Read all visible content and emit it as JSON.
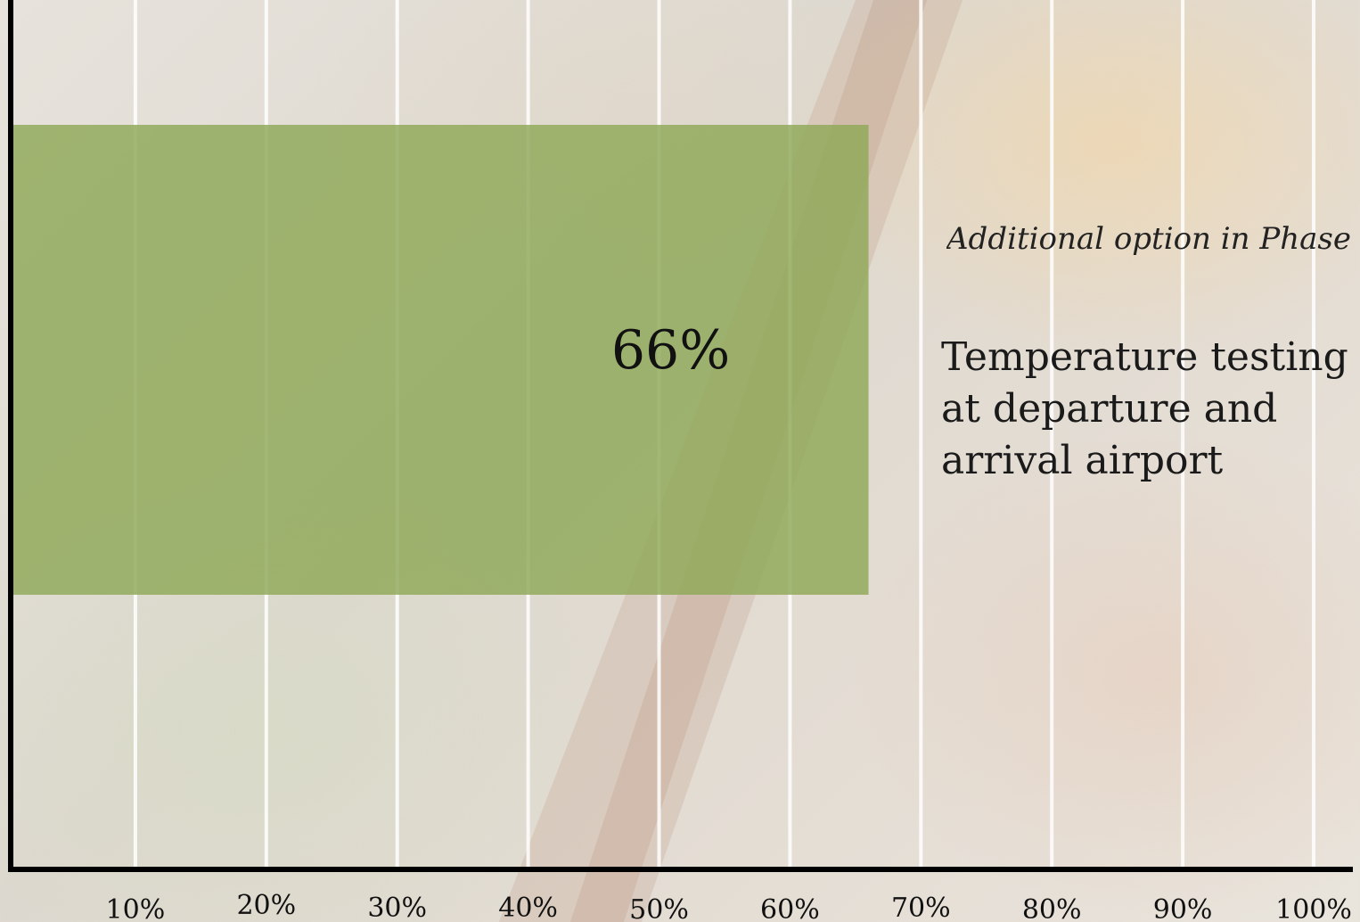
{
  "chart_data": {
    "type": "bar",
    "orientation": "horizontal",
    "categories": [
      "Temperature testing at departure and arrival airport"
    ],
    "values": [
      66
    ],
    "data_labels": [
      "66%"
    ],
    "xlim": [
      0,
      100
    ],
    "x_ticks": [
      10,
      20,
      30,
      40,
      50,
      60,
      70,
      80,
      90,
      100
    ],
    "x_tick_labels": [
      "10%",
      "20%",
      "30%",
      "40%",
      "50%",
      "60%",
      "70%",
      "80%",
      "90%",
      "100%"
    ],
    "grid": true,
    "annotation": "Additional option in Phase",
    "bar_color": "#8fa858"
  },
  "labels": {
    "phase": "Additional option in Phase",
    "measure": "Temperature testing at departure and arrival airport"
  }
}
